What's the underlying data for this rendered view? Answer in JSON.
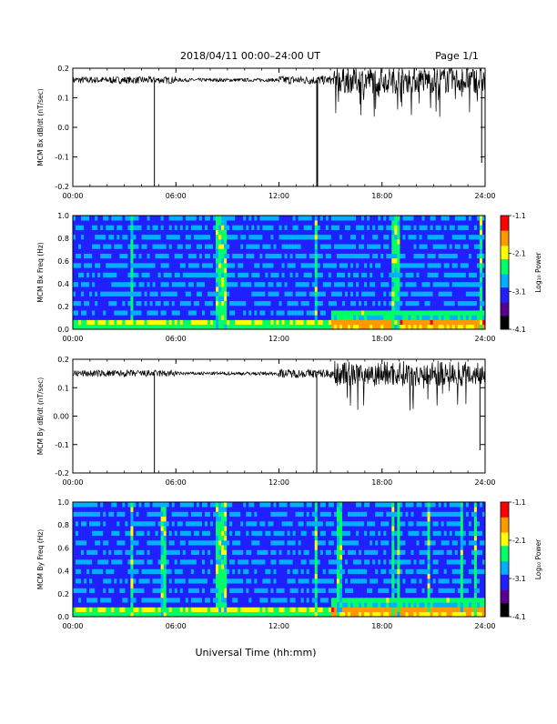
{
  "header": {
    "title": "2018/04/11   00:00–24:00 UT",
    "page": "Page 1/1"
  },
  "footer": {
    "xlabel": "Universal Time (hh:mm)"
  },
  "colorbar": {
    "label": "Log₁₀ Power",
    "ticks": [
      "-1.1",
      "-2.1",
      "-3.1",
      "-4.1"
    ],
    "range": [
      -4.1,
      -1.1
    ],
    "colors": [
      "#000000",
      "#5a0090",
      "#2020ff",
      "#00b0ff",
      "#00ff66",
      "#ffff00",
      "#ff9900",
      "#ff0000"
    ]
  },
  "chart_data": [
    {
      "type": "line",
      "ylabel": "MCM Bx dB/dt (nT/sec)",
      "ylim": [
        -0.2,
        0.2
      ],
      "yticks": [
        "0.2",
        "0.1",
        "0.0",
        "-0.1",
        "-0.2"
      ],
      "xticks": [
        "00:00",
        "06:00",
        "12:00",
        "18:00",
        "24:00"
      ],
      "xlim_hours": [
        0,
        24
      ],
      "baseline": 0.16,
      "spikes_hours": [
        4.75,
        14.2,
        14.25,
        23.8
      ],
      "active_from_hours": 15.2
    },
    {
      "type": "heatmap",
      "ylabel": "MCM Bx Freq (Hz)",
      "ylim": [
        0.0,
        1.0
      ],
      "yticks": [
        "1.0",
        "0.8",
        "0.6",
        "0.4",
        "0.2",
        "0.0"
      ],
      "xticks": [
        "00:00",
        "06:00",
        "12:00",
        "18:00",
        "24:00"
      ],
      "xlim_hours": [
        0,
        24
      ],
      "broadband_events_hours": [
        3.5,
        8.5,
        8.8,
        14.2,
        18.7,
        18.9,
        23.8
      ]
    },
    {
      "type": "line",
      "ylabel": "MCM By dB/dt (nT/sec)",
      "ylim": [
        -0.2,
        0.2
      ],
      "yticks": [
        "0.2",
        "0.1",
        "0.00",
        "-0.1",
        "-0.2"
      ],
      "xticks": [
        "00:00",
        "06:00",
        "12:00",
        "18:00",
        "24:00"
      ],
      "xlim_hours": [
        0,
        24
      ],
      "baseline": 0.15,
      "spikes_hours": [
        4.75,
        14.2,
        23.7
      ],
      "active_from_hours": 15.2
    },
    {
      "type": "heatmap",
      "ylabel": "MCM By Freq (Hz)",
      "ylim": [
        0.0,
        1.0
      ],
      "yticks": [
        "1.0",
        "0.8",
        "0.6",
        "0.4",
        "0.2",
        "0.0"
      ],
      "xticks": [
        "00:00",
        "06:00",
        "12:00",
        "18:00",
        "24:00"
      ],
      "xlim_hours": [
        0,
        24
      ],
      "broadband_events_hours": [
        3.5,
        5.3,
        8.5,
        8.8,
        14.2,
        15.5,
        15.6,
        18.6,
        19.0,
        20.7,
        22.6,
        23.5
      ]
    }
  ]
}
